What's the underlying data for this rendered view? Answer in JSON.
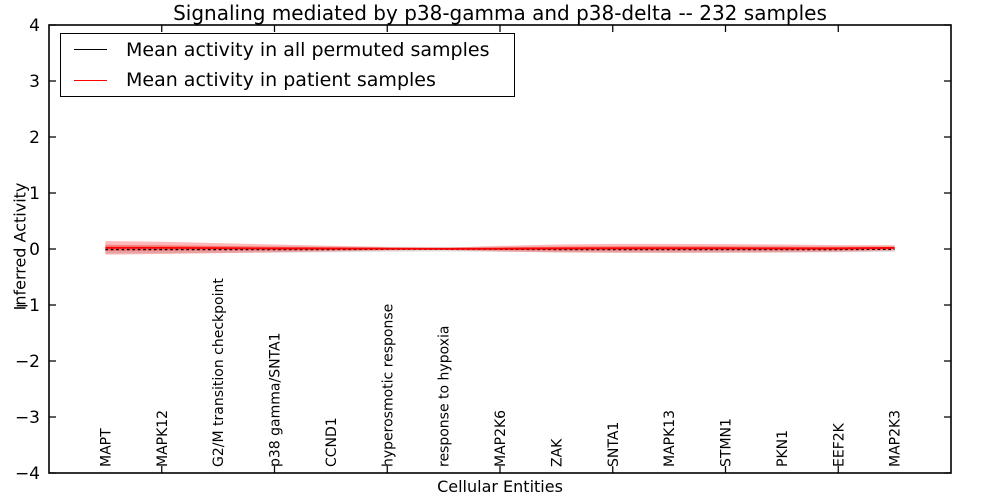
{
  "chart_data": {
    "type": "line",
    "title": "Signaling mediated by p38-gamma and p38-delta -- 232 samples",
    "xlabel": "Cellular Entities",
    "ylabel": "Inferred Activity",
    "ylim": [
      -4,
      4
    ],
    "xlim": [
      -1,
      15
    ],
    "grid": false,
    "legend_position": "top-left",
    "ytick_labels": [
      "4",
      "3",
      "2",
      "1",
      "0",
      "−1",
      "−2",
      "−3",
      "−4"
    ],
    "ytick_values": [
      4,
      3,
      2,
      1,
      0,
      -1,
      -2,
      -3,
      -4
    ],
    "xtick_values": [
      1,
      3,
      5,
      7,
      9,
      11,
      13
    ],
    "categories": [
      "MAPT",
      "MAPK12",
      "G2/M transition checkpoint",
      "p38 gamma/SNTA1",
      "CCND1",
      "hyperosmotic response",
      "response to hypoxia",
      "MAP2K6",
      "ZAK",
      "SNTA1",
      "MAPK13",
      "STMN1",
      "PKN1",
      "EEF2K",
      "MAP2K3"
    ],
    "series": [
      {
        "name": "Mean activity in all permuted samples",
        "color": "#000000",
        "line_style": "dashed",
        "band_color": "#aaaaaa",
        "band_opacity": 0.35,
        "values": [
          -0.01,
          -0.01,
          -0.01,
          -0.01,
          -0.01,
          -0.005,
          -0.005,
          -0.005,
          -0.01,
          -0.01,
          -0.01,
          -0.01,
          -0.01,
          -0.01,
          -0.005
        ],
        "band_halfwidth": [
          0.07,
          0.065,
          0.06,
          0.055,
          0.05,
          0.045,
          0.04,
          0.045,
          0.05,
          0.055,
          0.06,
          0.06,
          0.055,
          0.05,
          0.045
        ]
      },
      {
        "name": "Mean activity in patient samples",
        "color": "#ff0000",
        "line_style": "solid",
        "band_color": "#ff0000",
        "band_opacity": 0.28,
        "values": [
          0.02,
          0.02,
          0.015,
          0.01,
          0.008,
          0.005,
          0.003,
          0.005,
          0.01,
          0.012,
          0.012,
          0.012,
          0.01,
          0.01,
          0.02
        ],
        "band_halfwidth": [
          0.12,
          0.11,
          0.09,
          0.07,
          0.05,
          0.03,
          0.02,
          0.05,
          0.07,
          0.08,
          0.08,
          0.075,
          0.07,
          0.06,
          0.05
        ]
      }
    ]
  }
}
